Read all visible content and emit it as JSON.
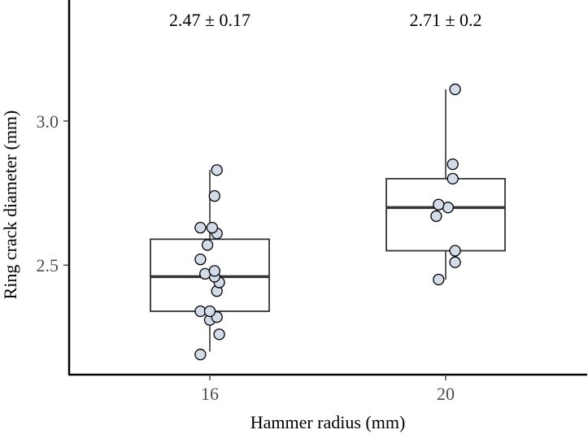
{
  "chart_data": {
    "type": "box",
    "xlabel": "Hammer radius (mm)",
    "ylabel": "Ring crack diameter (mm)",
    "ylim": [
      2.12,
      3.42
    ],
    "yticks": [
      2.5,
      3.0
    ],
    "ytick_labels": [
      "2.5",
      "3.0"
    ],
    "categories": [
      "16",
      "20"
    ],
    "grid": false,
    "groups": [
      {
        "category": "16",
        "annotation": "2.47 ± 0.17",
        "whisker_low": 2.2,
        "q1": 2.34,
        "median": 2.46,
        "q3": 2.59,
        "whisker_high": 2.83,
        "points": [
          {
            "x_jitter": -0.04,
            "y": 2.19
          },
          {
            "x_jitter": 0.04,
            "y": 2.26
          },
          {
            "x_jitter": 0.0,
            "y": 2.31
          },
          {
            "x_jitter": 0.03,
            "y": 2.32
          },
          {
            "x_jitter": -0.04,
            "y": 2.34
          },
          {
            "x_jitter": 0.0,
            "y": 2.34
          },
          {
            "x_jitter": 0.03,
            "y": 2.41
          },
          {
            "x_jitter": 0.04,
            "y": 2.44
          },
          {
            "x_jitter": 0.02,
            "y": 2.46
          },
          {
            "x_jitter": -0.02,
            "y": 2.47
          },
          {
            "x_jitter": 0.02,
            "y": 2.48
          },
          {
            "x_jitter": -0.04,
            "y": 2.52
          },
          {
            "x_jitter": -0.01,
            "y": 2.57
          },
          {
            "x_jitter": 0.03,
            "y": 2.61
          },
          {
            "x_jitter": 0.01,
            "y": 2.63
          },
          {
            "x_jitter": -0.04,
            "y": 2.63
          },
          {
            "x_jitter": 0.02,
            "y": 2.74
          },
          {
            "x_jitter": 0.03,
            "y": 2.83
          }
        ]
      },
      {
        "category": "20",
        "annotation": "2.71 ± 0.2",
        "whisker_low": 2.45,
        "q1": 2.55,
        "median": 2.7,
        "q3": 2.8,
        "whisker_high": 3.11,
        "points": [
          {
            "x_jitter": -0.03,
            "y": 2.45
          },
          {
            "x_jitter": 0.04,
            "y": 2.51
          },
          {
            "x_jitter": 0.04,
            "y": 2.55
          },
          {
            "x_jitter": -0.04,
            "y": 2.67
          },
          {
            "x_jitter": 0.01,
            "y": 2.7
          },
          {
            "x_jitter": -0.03,
            "y": 2.71
          },
          {
            "x_jitter": 0.03,
            "y": 2.8
          },
          {
            "x_jitter": 0.03,
            "y": 2.85
          },
          {
            "x_jitter": 0.04,
            "y": 3.11
          }
        ]
      }
    ],
    "colors": {
      "point_fill": "#d2dbe8",
      "point_stroke": "#000000",
      "box_stroke": "#333333",
      "axis": "#000000"
    }
  }
}
